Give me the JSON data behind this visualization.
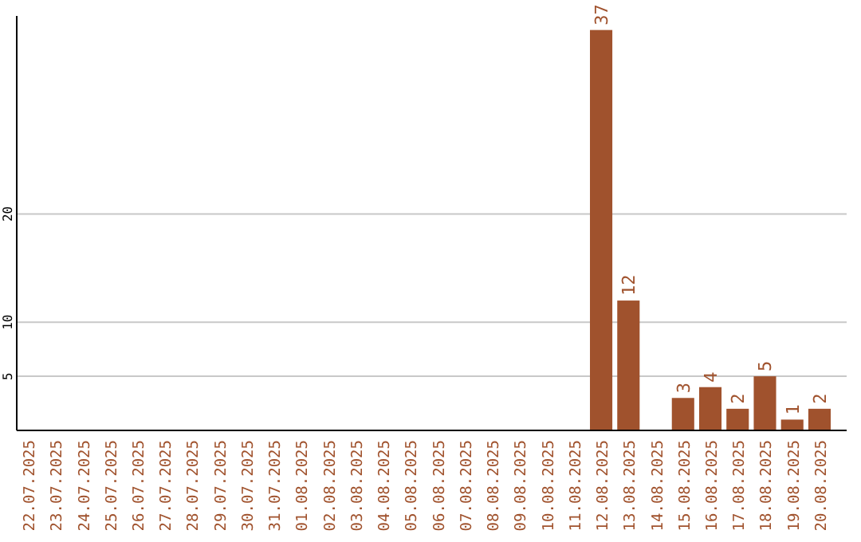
{
  "chart_data": {
    "type": "bar",
    "categories": [
      "22.07.2025",
      "23.07.2025",
      "24.07.2025",
      "25.07.2025",
      "26.07.2025",
      "27.07.2025",
      "28.07.2025",
      "29.07.2025",
      "30.07.2025",
      "31.07.2025",
      "01.08.2025",
      "02.08.2025",
      "03.08.2025",
      "04.08.2025",
      "05.08.2025",
      "06.08.2025",
      "07.08.2025",
      "08.08.2025",
      "09.08.2025",
      "10.08.2025",
      "11.08.2025",
      "12.08.2025",
      "13.08.2025",
      "14.08.2025",
      "15.08.2025",
      "16.08.2025",
      "17.08.2025",
      "18.08.2025",
      "19.08.2025",
      "20.08.2025"
    ],
    "values": [
      0,
      0,
      0,
      0,
      0,
      0,
      0,
      0,
      0,
      0,
      0,
      0,
      0,
      0,
      0,
      0,
      0,
      0,
      0,
      0,
      0,
      37,
      12,
      0,
      3,
      4,
      2,
      5,
      1,
      2
    ],
    "value_labels": [
      null,
      null,
      null,
      null,
      null,
      null,
      null,
      null,
      null,
      null,
      null,
      null,
      null,
      null,
      null,
      null,
      null,
      null,
      null,
      null,
      null,
      "37",
      "12",
      null,
      "3",
      "4",
      "2",
      "5",
      "1",
      "2"
    ],
    "color": "#a0522d",
    "ylim": [
      0,
      38.3
    ],
    "yticks": [
      5,
      10,
      20
    ],
    "grid": "y"
  }
}
